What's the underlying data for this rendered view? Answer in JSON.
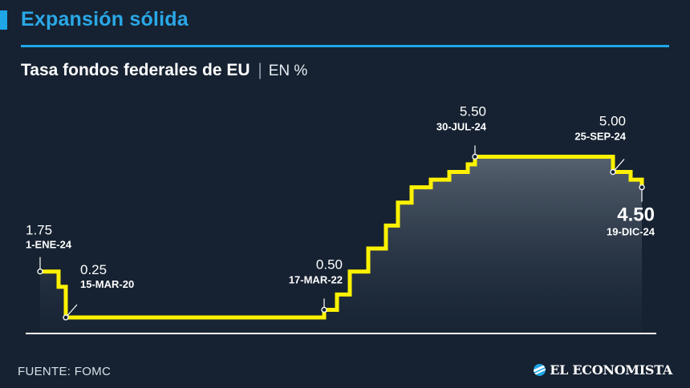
{
  "header": {
    "headline": "Expansión sólida",
    "accent_color": "#1fa6e6"
  },
  "chart_title": {
    "main": "Tasa fondos federales de EU",
    "separator": "|",
    "unit": "EN %"
  },
  "footer": {
    "source": "FUENTE: FOMC",
    "logo": "EL ECONOMISTA",
    "logo_icon": "globe-icon"
  },
  "chart_data": {
    "type": "line",
    "step": true,
    "line_color": "#fff200",
    "ylim": [
      0,
      6
    ],
    "grid": false,
    "points": [
      {
        "value": 1.75
      },
      {
        "value": 1.25
      },
      {
        "value": 0.25
      },
      {
        "value": 0.25
      },
      {
        "value": 0.5
      },
      {
        "value": 1.0
      },
      {
        "value": 1.75
      },
      {
        "value": 2.5
      },
      {
        "value": 3.25
      },
      {
        "value": 4.0
      },
      {
        "value": 4.5
      },
      {
        "value": 4.75
      },
      {
        "value": 5.0
      },
      {
        "value": 5.25
      },
      {
        "value": 5.5
      },
      {
        "value": 5.5
      },
      {
        "value": 5.0
      },
      {
        "value": 4.75
      },
      {
        "value": 4.5
      }
    ],
    "annotations": [
      {
        "index": 0,
        "value_label": "1.75",
        "date_label": "1-ENE-24"
      },
      {
        "index": 2,
        "value_label": "0.25",
        "date_label": "15-MAR-20"
      },
      {
        "index": 4,
        "value_label": "0.50",
        "date_label": "17-MAR-22"
      },
      {
        "index": 14,
        "value_label": "5.50",
        "date_label": "30-JUL-24"
      },
      {
        "index": 16,
        "value_label": "5.00",
        "date_label": "25-SEP-24"
      },
      {
        "index": 18,
        "value_label": "4.50",
        "date_label": "19-DIC-24"
      }
    ]
  }
}
